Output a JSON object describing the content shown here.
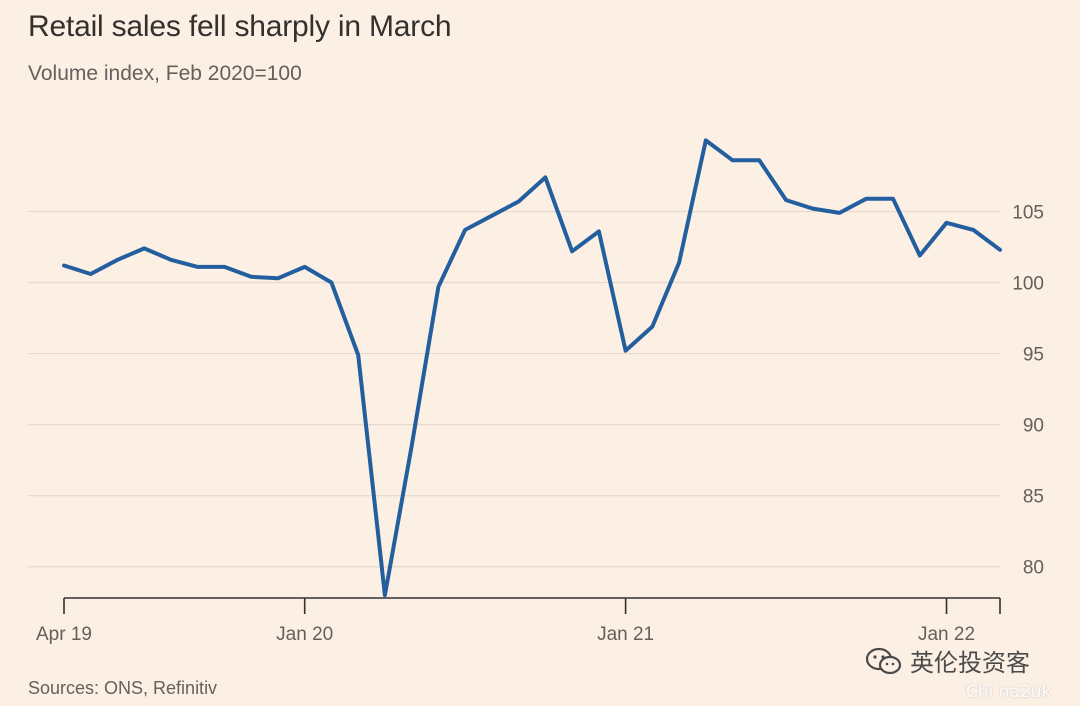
{
  "title": "Retail sales fell sharply in March",
  "subtitle": "Volume index, Feb 2020=100",
  "source": "Sources: ONS, Refinitiv",
  "watermark": {
    "text": "英伦投资客",
    "sub": "Chi na2uk",
    "icon": "wechat-icon"
  },
  "colors": {
    "background": "#fcefe4",
    "line": "#235f9e",
    "grid": "#e6d9ce",
    "axis": "#33302e",
    "text": "#66605c"
  },
  "chart_data": {
    "type": "line",
    "title": "Retail sales fell sharply in March",
    "subtitle": "Volume index, Feb 2020=100",
    "xlabel": "",
    "ylabel": "",
    "x": [
      "2019-04",
      "2019-05",
      "2019-06",
      "2019-07",
      "2019-08",
      "2019-09",
      "2019-10",
      "2019-11",
      "2019-12",
      "2020-01",
      "2020-02",
      "2020-03",
      "2020-04",
      "2020-05",
      "2020-06",
      "2020-07",
      "2020-08",
      "2020-09",
      "2020-10",
      "2020-11",
      "2020-12",
      "2021-01",
      "2021-02",
      "2021-03",
      "2021-04",
      "2021-05",
      "2021-06",
      "2021-07",
      "2021-08",
      "2021-09",
      "2021-10",
      "2021-11",
      "2021-12",
      "2022-01",
      "2022-02",
      "2022-03"
    ],
    "series": [
      {
        "values": [
          101.2,
          100.6,
          101.6,
          102.4,
          101.6,
          101.1,
          101.1,
          100.4,
          100.3,
          101.1,
          100.0,
          94.9,
          78.0,
          88.5,
          99.7,
          103.7,
          104.7,
          105.7,
          107.4,
          102.2,
          103.6,
          95.2,
          96.9,
          101.4,
          110.0,
          108.6,
          108.6,
          105.8,
          105.2,
          104.9,
          105.9,
          105.9,
          101.9,
          104.2,
          103.7,
          102.3
        ]
      }
    ],
    "x_ticks": [
      {
        "label": "Apr 19",
        "index": 0
      },
      {
        "label": "Jan 20",
        "index": 9
      },
      {
        "label": "Jan 21",
        "index": 21
      },
      {
        "label": "Jan 22",
        "index": 33
      }
    ],
    "y_ticks": [
      80,
      85,
      90,
      95,
      100,
      105
    ],
    "ylim": [
      77.8,
      112
    ],
    "y_axis_side": "right",
    "grid": true
  }
}
